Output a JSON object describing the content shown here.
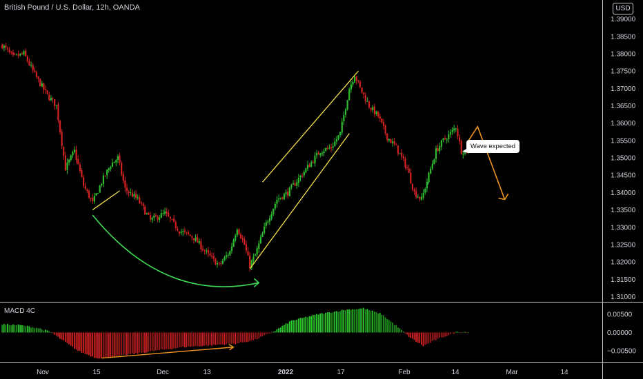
{
  "header": {
    "title": "British Pound / U.S. Dollar, 12h, OANDA",
    "currency_button": "USD"
  },
  "indicator": {
    "label": "MACD 4C"
  },
  "annotation": {
    "text": "Wave expected"
  },
  "colors": {
    "background": "#000000",
    "up": "#2ebd2e",
    "down": "#d42222",
    "grid": "#ffffff",
    "trendline": "#f5e24a",
    "arc": "#3ddc55",
    "forecast": "#f0961e",
    "macd_trend": "#f0961e"
  },
  "chart_data": [
    {
      "type": "candlestick",
      "name": "price",
      "x_ticks": [
        "Nov",
        "15",
        "Dec",
        "13",
        "2022",
        "17",
        "Feb",
        "14",
        "Mar",
        "14"
      ],
      "y_ticks": [
        "1.39000",
        "1.38500",
        "1.38000",
        "1.37500",
        "1.37000",
        "1.36500",
        "1.36000",
        "1.35500",
        "1.35000",
        "1.34500",
        "1.34000",
        "1.33500",
        "1.33000",
        "1.32500",
        "1.32000",
        "1.31500",
        "1.31000"
      ],
      "ylim": [
        1.3085,
        1.3955
      ],
      "anchors": [
        [
          0,
          1.3825
        ],
        [
          6,
          1.379
        ],
        [
          12,
          1.38
        ],
        [
          18,
          1.374
        ],
        [
          25,
          1.368
        ],
        [
          30,
          1.365
        ],
        [
          35,
          1.347
        ],
        [
          40,
          1.352
        ],
        [
          45,
          1.342
        ],
        [
          50,
          1.337
        ],
        [
          55,
          1.343
        ],
        [
          60,
          1.348
        ],
        [
          64,
          1.35
        ],
        [
          68,
          1.341
        ],
        [
          75,
          1.338
        ],
        [
          82,
          1.332
        ],
        [
          90,
          1.334
        ],
        [
          98,
          1.329
        ],
        [
          106,
          1.327
        ],
        [
          114,
          1.322
        ],
        [
          120,
          1.319
        ],
        [
          126,
          1.323
        ],
        [
          130,
          1.33
        ],
        [
          134,
          1.325
        ],
        [
          137,
          1.319
        ],
        [
          140,
          1.322
        ],
        [
          146,
          1.331
        ],
        [
          152,
          1.338
        ],
        [
          158,
          1.34
        ],
        [
          164,
          1.344
        ],
        [
          170,
          1.348
        ],
        [
          176,
          1.352
        ],
        [
          182,
          1.353
        ],
        [
          187,
          1.357
        ],
        [
          192,
          1.37
        ],
        [
          195,
          1.374
        ],
        [
          198,
          1.37
        ],
        [
          203,
          1.365
        ],
        [
          208,
          1.362
        ],
        [
          213,
          1.356
        ],
        [
          218,
          1.353
        ],
        [
          224,
          1.347
        ],
        [
          228,
          1.34
        ],
        [
          232,
          1.338
        ],
        [
          236,
          1.345
        ],
        [
          240,
          1.352
        ],
        [
          244,
          1.355
        ],
        [
          248,
          1.357
        ],
        [
          251,
          1.359
        ],
        [
          254,
          1.352
        ],
        [
          258,
          1.352
        ]
      ],
      "trend_lines": [
        {
          "label": "support",
          "from": [
            50,
            1.335
          ],
          "to": [
            65,
            1.3405
          ]
        },
        {
          "label": "channel-upper",
          "from": [
            144,
            1.343
          ],
          "to": [
            197,
            1.375
          ]
        },
        {
          "label": "channel-lower",
          "from": [
            137,
            1.318
          ],
          "to": [
            192,
            1.357
          ]
        }
      ],
      "arc": {
        "from": [
          50,
          1.3335
        ],
        "control": [
          90,
          1.308
        ],
        "to": [
          142,
          1.314
        ]
      },
      "forecast_path": [
        [
          258,
          1.355
        ],
        [
          263,
          1.359
        ],
        [
          278,
          1.338
        ]
      ]
    },
    {
      "type": "histogram",
      "name": "MACD 4C",
      "y_ticks": [
        "0.00500",
        "0.00000",
        "−0.00500"
      ],
      "ylim": [
        -0.008,
        0.008
      ],
      "anchors": [
        [
          0,
          0.0022
        ],
        [
          10,
          0.002
        ],
        [
          20,
          0.0012
        ],
        [
          27,
          0.0001
        ],
        [
          33,
          -0.002
        ],
        [
          42,
          -0.005
        ],
        [
          52,
          -0.007
        ],
        [
          60,
          -0.0068
        ],
        [
          70,
          -0.006
        ],
        [
          85,
          -0.005
        ],
        [
          100,
          -0.004
        ],
        [
          115,
          -0.0035
        ],
        [
          130,
          -0.003
        ],
        [
          140,
          -0.002
        ],
        [
          150,
          0.0002
        ],
        [
          160,
          0.0032
        ],
        [
          175,
          0.005
        ],
        [
          190,
          0.0062
        ],
        [
          200,
          0.0066
        ],
        [
          210,
          0.005
        ],
        [
          220,
          0.001
        ],
        [
          226,
          -0.0015
        ],
        [
          233,
          -0.0037
        ],
        [
          240,
          -0.002
        ],
        [
          248,
          -0.0005
        ],
        [
          252,
          0.0002
        ],
        [
          258,
          0.0001
        ]
      ],
      "trend_line": {
        "from": [
          55,
          -0.007
        ],
        "to": [
          128,
          -0.004
        ]
      }
    }
  ]
}
